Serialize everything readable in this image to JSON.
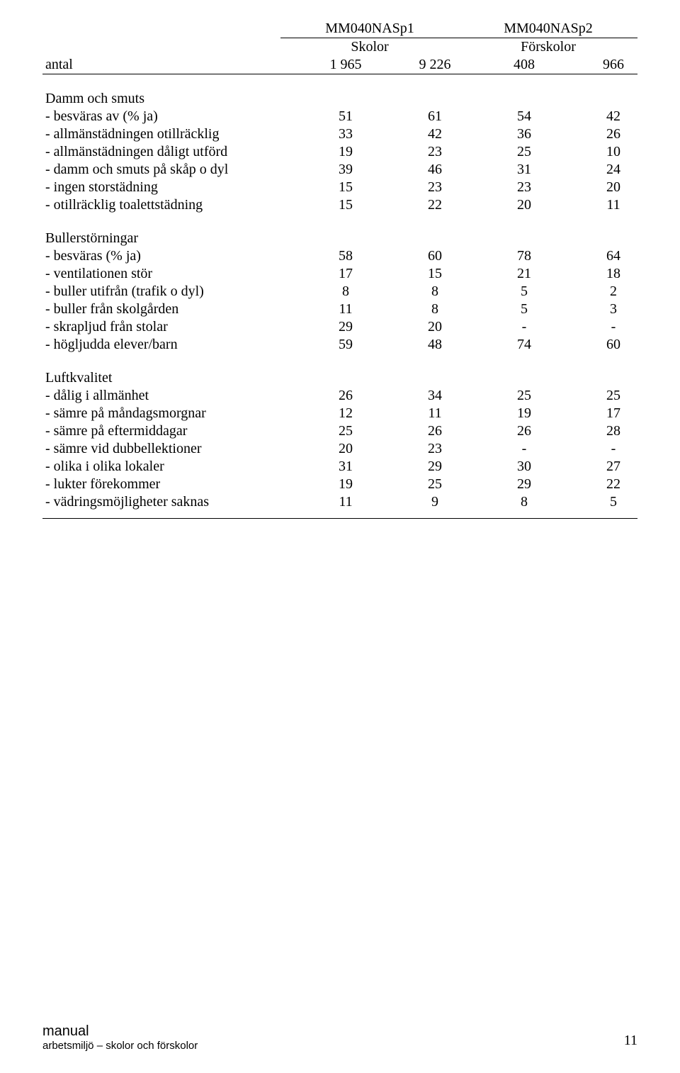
{
  "header": {
    "col_group_1": "MM040NASp1",
    "col_group_2": "MM040NASp2",
    "sub_1": "Skolor",
    "sub_2": "Förskolor"
  },
  "antal": {
    "label": "antal",
    "values": [
      "1 965",
      "9 226",
      "408",
      "966"
    ]
  },
  "sections": [
    {
      "title": "Damm och smuts",
      "rows": [
        {
          "label": "- besväras av (% ja)",
          "v": [
            "51",
            "61",
            "54",
            "42"
          ]
        },
        {
          "label": "- allmänstädningen otillräcklig",
          "v": [
            "33",
            "42",
            "36",
            "26"
          ]
        },
        {
          "label": "- allmänstädningen dåligt utförd",
          "v": [
            "19",
            "23",
            "25",
            "10"
          ]
        },
        {
          "label": "- damm och smuts på skåp o dyl",
          "v": [
            "39",
            "46",
            "31",
            "24"
          ]
        },
        {
          "label": "- ingen storstädning",
          "v": [
            "15",
            "23",
            "23",
            "20"
          ]
        },
        {
          "label": "- otillräcklig toalettstädning",
          "v": [
            "15",
            "22",
            "20",
            "11"
          ]
        }
      ]
    },
    {
      "title": "Bullerstörningar",
      "rows": [
        {
          "label": "- besväras (% ja)",
          "v": [
            "58",
            "60",
            "78",
            "64"
          ]
        },
        {
          "label": "- ventilationen stör",
          "v": [
            "17",
            "15",
            "21",
            "18"
          ]
        },
        {
          "label": "- buller utifrån (trafik o dyl)",
          "v": [
            "8",
            "8",
            "5",
            "2"
          ]
        },
        {
          "label": "- buller från skolgården",
          "v": [
            "11",
            "8",
            "5",
            "3"
          ]
        },
        {
          "label": "- skrapljud från stolar",
          "v": [
            "29",
            "20",
            "-",
            "-"
          ]
        },
        {
          "label": "- högljudda elever/barn",
          "v": [
            "59",
            "48",
            "74",
            "60"
          ]
        }
      ]
    },
    {
      "title": "Luftkvalitet",
      "rows": [
        {
          "label": "- dålig i allmänhet",
          "v": [
            "26",
            "34",
            "25",
            "25"
          ]
        },
        {
          "label": "- sämre på måndagsmorgnar",
          "v": [
            "12",
            "11",
            "19",
            "17"
          ]
        },
        {
          "label": "- sämre på eftermiddagar",
          "v": [
            "25",
            "26",
            "26",
            "28"
          ]
        },
        {
          "label": "- sämre vid dubbellektioner",
          "v": [
            "20",
            "23",
            "-",
            "-"
          ]
        },
        {
          "label": "- olika i olika lokaler",
          "v": [
            "31",
            "29",
            "30",
            "27"
          ]
        },
        {
          "label": "- lukter förekommer",
          "v": [
            "19",
            "25",
            "29",
            "22"
          ]
        },
        {
          "label": "- vädringsmöjligheter saknas",
          "v": [
            "11",
            "9",
            "8",
            "5"
          ]
        }
      ]
    }
  ],
  "footer": {
    "line1": "manual",
    "line2": "arbetsmiljö – skolor och förskolor",
    "page": "11"
  }
}
